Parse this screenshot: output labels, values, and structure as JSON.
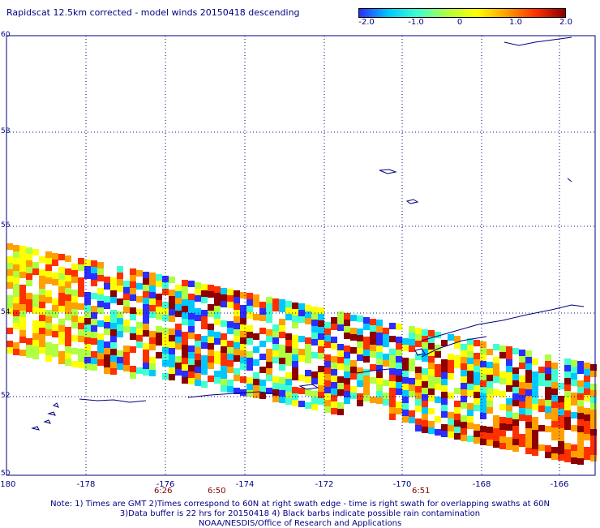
{
  "title": "Rapidscat 12.5km corrected - model winds 20150418 descending",
  "colorbar": {
    "labels": [
      "-2.0",
      "-1.0",
      "0",
      "1.0",
      "2.0"
    ],
    "colors": [
      "#2d2dff",
      "#00c8ff",
      "#40ffd0",
      "#b0ff40",
      "#ffff00",
      "#ffa000",
      "#ff3000",
      "#8b0000"
    ]
  },
  "axes": {
    "x_labels": [
      "-180",
      "-178",
      "-176",
      "-174",
      "-172",
      "-170",
      "-168",
      "-166"
    ],
    "y_labels": [
      "60",
      "58",
      "56",
      "54",
      "52",
      "50"
    ],
    "grid_color": "#000080",
    "y_grid_color": "#008000"
  },
  "times": [
    "6:26",
    "6:50",
    "6:51"
  ],
  "notes": [
    "Note: 1) Times are GMT 2)Times correspond to 60N at right swath edge - time is right swath for overlapping swaths at 60N",
    "3)Data buffer is 22 hrs for 20150418 4) Black barbs indicate possible rain contamination",
    "NOAA/NESDIS/Office of Research and Applications"
  ]
}
